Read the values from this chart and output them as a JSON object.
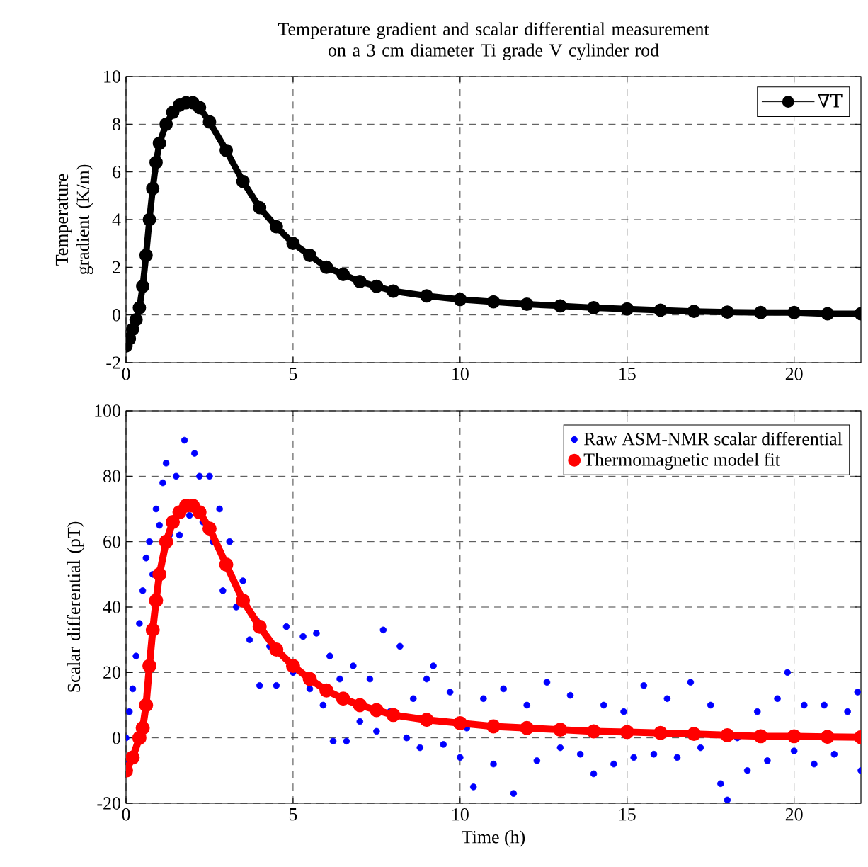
{
  "chart_data": [
    {
      "type": "line",
      "title": "Temperature gradient and scalar differential measurement on a 3 cm diameter Ti grade V cylinder rod",
      "ylabel": "Temperature gradient (K/m)",
      "xlim": [
        0,
        22
      ],
      "xticks": [
        0,
        5,
        10,
        15,
        20
      ],
      "ylim": [
        -2,
        10
      ],
      "yticks": [
        -2,
        0,
        2,
        4,
        6,
        8,
        10
      ],
      "grid": true,
      "legend": "top right",
      "marker": "circle",
      "line_style": "solid",
      "series": [
        {
          "name": "∇T",
          "color": "#000000",
          "x": [
            0,
            0.1,
            0.2,
            0.3,
            0.4,
            0.5,
            0.6,
            0.7,
            0.8,
            0.9,
            1.0,
            1.2,
            1.4,
            1.6,
            1.8,
            2.0,
            2.2,
            2.5,
            3.0,
            3.5,
            4.0,
            4.5,
            5,
            5.5,
            6,
            6.5,
            7,
            7.5,
            8,
            9,
            10,
            11,
            12,
            13,
            14,
            15,
            16,
            17,
            18,
            19,
            20,
            21,
            22
          ],
          "values": [
            -1.3,
            -1.0,
            -0.6,
            -0.2,
            0.3,
            1.2,
            2.5,
            4.0,
            5.3,
            6.4,
            7.2,
            8.0,
            8.5,
            8.8,
            8.9,
            8.9,
            8.7,
            8.1,
            6.9,
            5.6,
            4.5,
            3.7,
            3.0,
            2.5,
            2.0,
            1.7,
            1.4,
            1.2,
            1.0,
            0.8,
            0.65,
            0.55,
            0.45,
            0.38,
            0.3,
            0.25,
            0.2,
            0.15,
            0.12,
            0.1,
            0.1,
            0.05,
            0.05
          ]
        }
      ]
    },
    {
      "type": "scatter",
      "xlabel": "Time (h)",
      "ylabel": "Scalar differential (pT)",
      "xlim": [
        0,
        22
      ],
      "xticks": [
        0,
        5,
        10,
        15,
        20
      ],
      "ylim": [
        -20,
        100
      ],
      "yticks": [
        -20,
        0,
        20,
        40,
        60,
        80,
        100
      ],
      "grid": true,
      "legend": "top right",
      "marker": "circle",
      "series": [
        {
          "name": "Raw ASM-NMR scalar differential",
          "color": "#0000ff",
          "x": [
            0,
            0.05,
            0.1,
            0.2,
            0.3,
            0.4,
            0.5,
            0.6,
            0.7,
            0.8,
            0.9,
            1.0,
            1.1,
            1.2,
            1.3,
            1.5,
            1.6,
            1.75,
            1.9,
            2.05,
            2.2,
            2.3,
            2.5,
            2.6,
            2.8,
            2.9,
            3.1,
            3.3,
            3.5,
            3.7,
            3.9,
            4.0,
            4.3,
            4.5,
            4.8,
            5.0,
            5.3,
            5.5,
            5.7,
            5.9,
            6.1,
            6.2,
            6.4,
            6.6,
            6.8,
            7.0,
            7.3,
            7.5,
            7.7,
            7.9,
            8.2,
            8.4,
            8.6,
            8.8,
            9.0,
            9.2,
            9.5,
            9.7,
            10.0,
            10.2,
            10.4,
            10.7,
            11.0,
            11.3,
            11.6,
            12.0,
            12.3,
            12.6,
            13.0,
            13.3,
            13.6,
            14.0,
            14.3,
            14.6,
            14.9,
            15.2,
            15.5,
            15.8,
            16.2,
            16.5,
            16.9,
            17.2,
            17.5,
            17.8,
            18.0,
            18.3,
            18.6,
            18.9,
            19.2,
            19.5,
            19.8,
            20.0,
            20.3,
            20.6,
            20.9,
            21.2,
            21.6,
            21.9,
            22.0
          ],
          "values": [
            0,
            -8,
            8,
            15,
            25,
            35,
            45,
            55,
            60,
            50,
            70,
            65,
            78,
            84,
            62,
            80,
            62,
            91,
            68,
            87,
            80,
            66,
            80,
            60,
            70,
            45,
            60,
            40,
            48,
            30,
            36,
            16,
            28,
            16,
            34,
            20,
            31,
            15,
            32,
            10,
            25,
            -1,
            18,
            -1,
            22,
            5,
            18,
            2,
            33,
            8,
            28,
            0,
            12,
            -3,
            18,
            22,
            -2,
            14,
            -6,
            3,
            -15,
            12,
            -8,
            15,
            -17,
            10,
            -7,
            17,
            -3,
            13,
            -5,
            -11,
            10,
            -8,
            8,
            -6,
            16,
            -5,
            12,
            -6,
            17,
            -3,
            10,
            -14,
            -19,
            0,
            -10,
            8,
            -7,
            12,
            20,
            -4,
            10,
            -8,
            10,
            -5,
            8,
            14,
            -10
          ]
        },
        {
          "name": "Thermomagnetic model fit",
          "type": "line",
          "color": "#ff0000",
          "x": [
            0,
            0.2,
            0.4,
            0.5,
            0.6,
            0.7,
            0.8,
            0.9,
            1.0,
            1.2,
            1.4,
            1.6,
            1.8,
            2.0,
            2.2,
            2.5,
            3.0,
            3.5,
            4.0,
            4.5,
            5,
            5.5,
            6,
            6.5,
            7,
            7.5,
            8,
            9,
            10,
            11,
            12,
            13,
            14,
            15,
            16,
            17,
            18,
            19,
            20,
            21,
            22
          ],
          "values": [
            -10,
            -6,
            0,
            3,
            10,
            22,
            33,
            42,
            50,
            60,
            66,
            69,
            71,
            71,
            69,
            64,
            53,
            42,
            34,
            27,
            22,
            18,
            14.5,
            12,
            10,
            8.5,
            7,
            5.5,
            4.5,
            3.5,
            3,
            2.5,
            2,
            1.8,
            1.5,
            1.2,
            0.8,
            0.5,
            0.5,
            0.3,
            0.2
          ]
        }
      ]
    }
  ]
}
